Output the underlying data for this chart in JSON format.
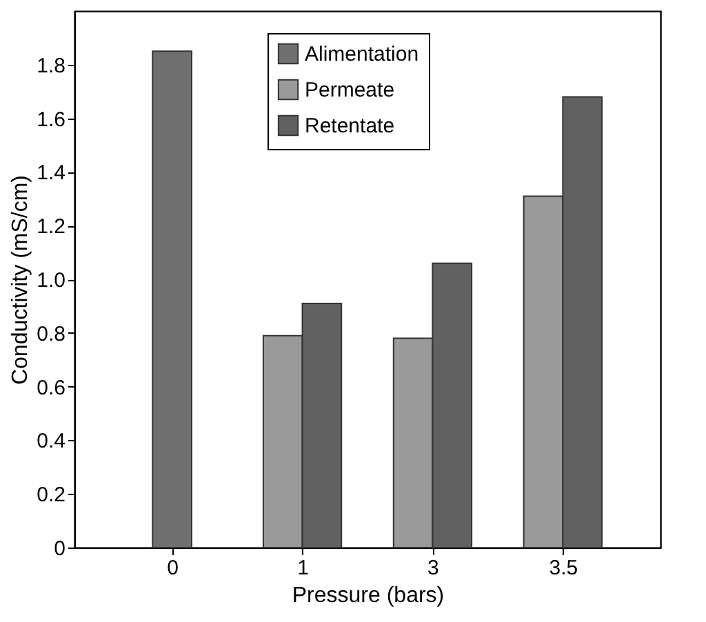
{
  "chart_data": {
    "type": "bar",
    "xlabel": "Pressure (bars)",
    "ylabel": "Conductivity (mS/cm)",
    "categories": [
      "0",
      "1",
      "3",
      "3.5"
    ],
    "series": [
      {
        "name": "Alimentation",
        "color": "#707070",
        "values": [
          1.85,
          null,
          null,
          null
        ]
      },
      {
        "name": "Permeate",
        "color": "#9a9a9a",
        "values": [
          null,
          0.79,
          0.78,
          1.31
        ]
      },
      {
        "name": "Retentate",
        "color": "#616161",
        "values": [
          null,
          0.91,
          1.06,
          1.68
        ]
      }
    ],
    "ylim": [
      0,
      2
    ],
    "yticks": [
      0,
      0.2,
      0.4,
      0.6,
      0.8,
      {
        "value": 1,
        "label": "1.0"
      },
      1.2,
      1.4,
      1.6,
      1.8
    ],
    "grid": false,
    "legend": "top"
  }
}
